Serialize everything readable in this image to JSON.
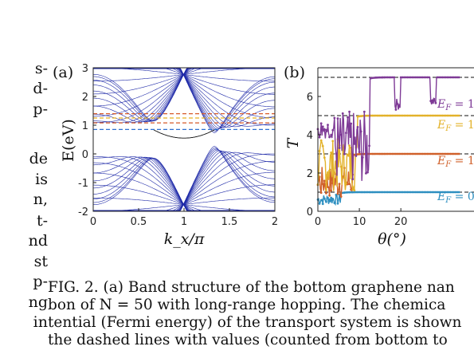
{
  "left_column_fragments": [
    "s-",
    "d-",
    "p-",
    "de",
    "is",
    "n,",
    "t-",
    "nd",
    "st",
    "p-",
    "ng",
    "in"
  ],
  "figure": {
    "panel_a": {
      "label": "(a)",
      "xlabel": "k_x/π",
      "ylabel": "E(eV)",
      "xticks": [
        "0",
        "0.5",
        "1",
        "1.5",
        "2"
      ],
      "yticks": [
        "-2",
        "-1",
        "0",
        "1",
        "2",
        "3"
      ],
      "dashed_levels": [
        {
          "E": 0.85,
          "color": "#2f6fd0"
        },
        {
          "E": 1.08,
          "color": "#d65a2a"
        },
        {
          "E": 1.25,
          "color": "#e8b020"
        },
        {
          "E": 1.4,
          "color": "#d65a2a"
        }
      ],
      "band_color": "#1f2aa8"
    },
    "panel_b": {
      "label": "(b)",
      "xlabel": "θ(°)",
      "ylabel": "T",
      "xticks": [
        "0",
        "10",
        "20"
      ],
      "yticks": [
        "0",
        "2",
        "4",
        "6"
      ],
      "plateaus": [
        1,
        3,
        5,
        7
      ],
      "series": [
        {
          "label": "E_F = 0",
          "color": "#2d8fc0",
          "plateau": 1
        },
        {
          "label": "E_F = 1",
          "color": "#d0602a",
          "plateau": 3
        },
        {
          "label": "E_F = 1",
          "color": "#e3b22a",
          "plateau": 5
        },
        {
          "label": "E_F = 1",
          "color": "#7e3a96",
          "plateau": 7
        }
      ]
    }
  },
  "caption_lines": [
    "FIG. 2.  (a) Band structure of the bottom graphene nan",
    "bon of N = 50 with long-range hopping.  The chemica",
    "tential (Fermi energy) of the transport system is shown",
    "the dashed lines with values (counted from bottom to"
  ]
}
